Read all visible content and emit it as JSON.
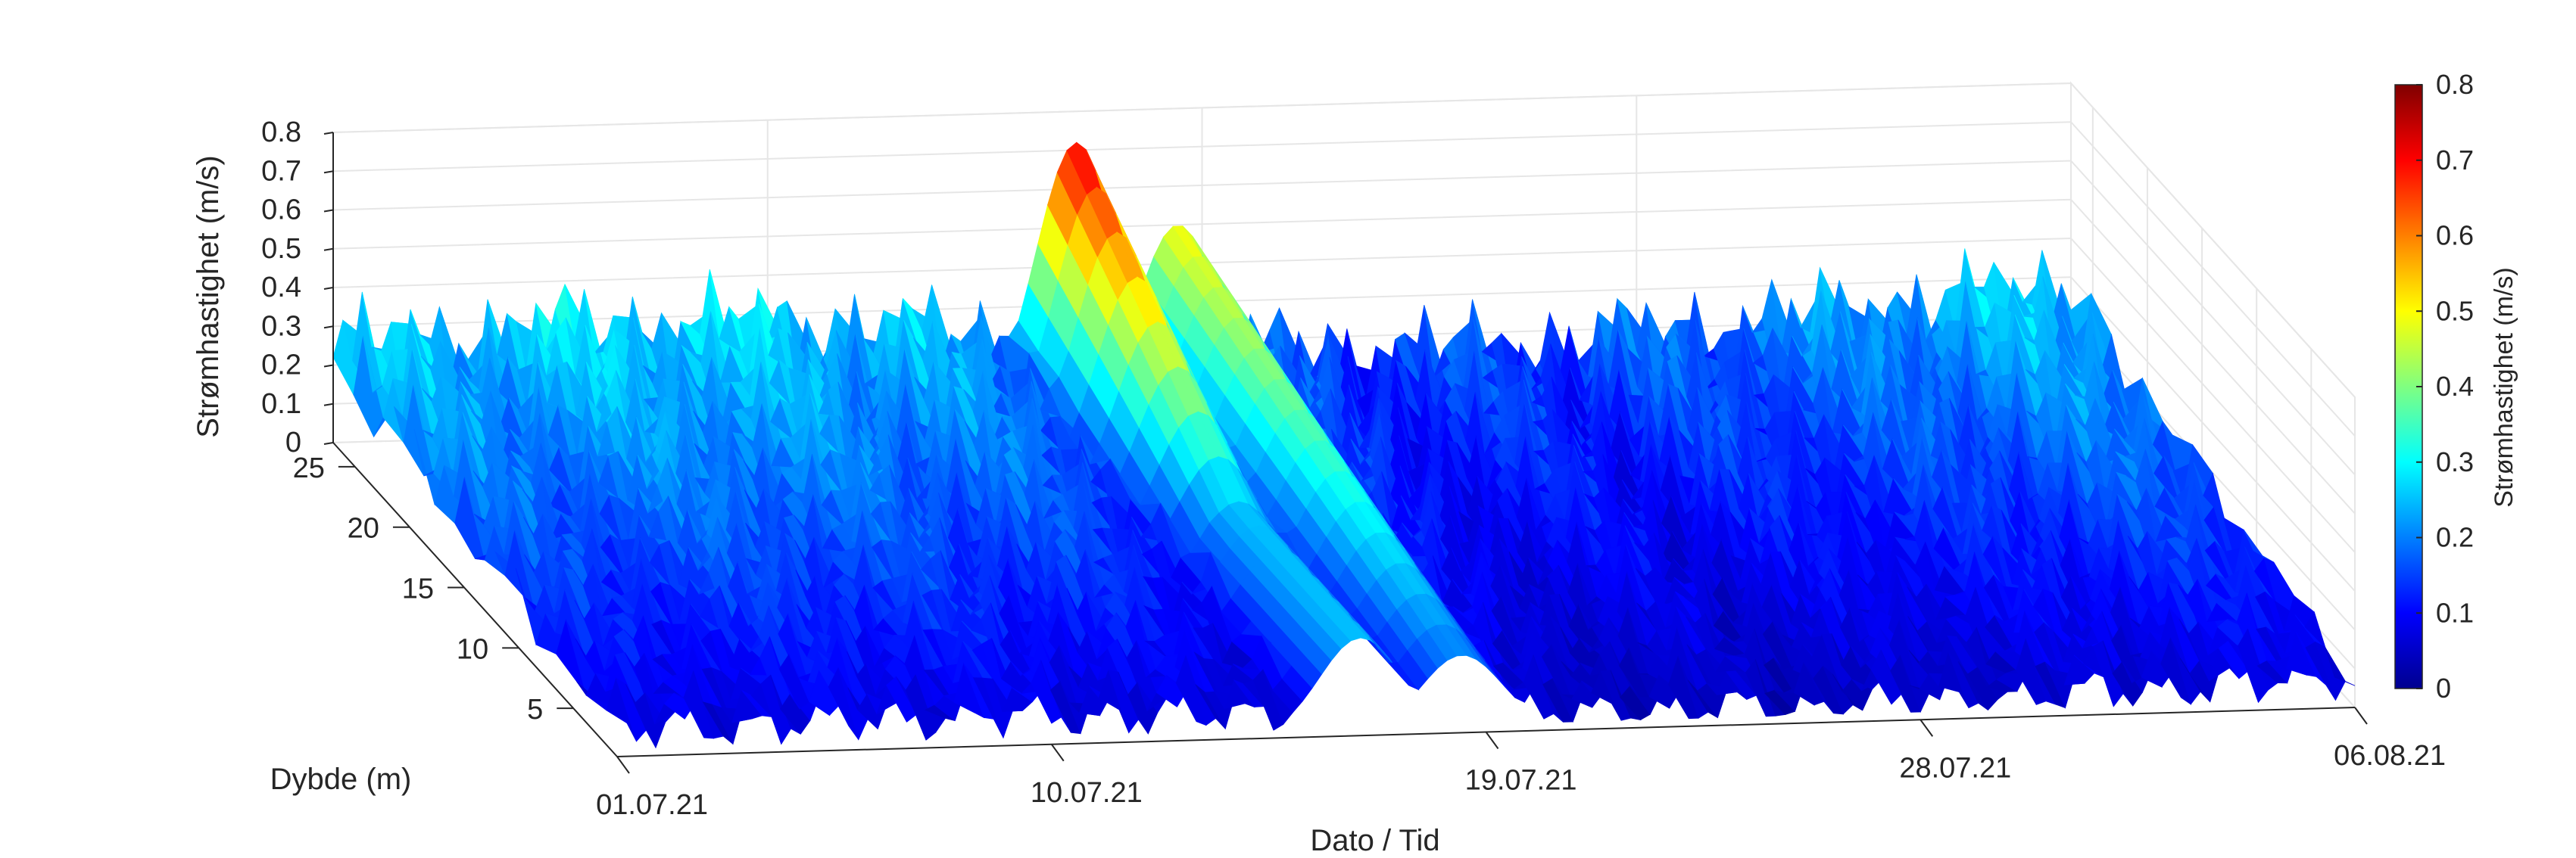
{
  "chart_data": {
    "type": "surface",
    "zlabel": "Strømhastighet (m/s)",
    "ylabel": "Dybde (m)",
    "xlabel": "Dato / Tid",
    "colorbar_label": "Strømhastighet (m/s)",
    "colormap": "jet",
    "zlim": [
      0,
      0.8
    ],
    "clim": [
      0,
      0.8
    ],
    "z_ticks": [
      "0",
      "0.1",
      "0.2",
      "0.3",
      "0.4",
      "0.5",
      "0.6",
      "0.7",
      "0.8"
    ],
    "y_ticks": [
      5,
      10,
      15,
      20,
      25
    ],
    "y_tick_labels": [
      "5",
      "10",
      "15",
      "20",
      "25"
    ],
    "x_tick_labels": [
      "01.07.21",
      "10.07.21",
      "19.07.21",
      "28.07.21",
      "06.08.21"
    ],
    "colorbar_ticks": [
      "0",
      "0.1",
      "0.2",
      "0.3",
      "0.4",
      "0.5",
      "0.6",
      "0.7",
      "0.8"
    ],
    "x_range_days": [
      0,
      36
    ],
    "ylim": [
      1,
      27
    ],
    "grid": true,
    "notes_series": {
      "baseline_speed_shallow": 0.07,
      "baseline_speed_deep": 0.25,
      "peak_event": {
        "x_day": 14.5,
        "speed": 0.72,
        "depth_top": 27,
        "depth_bottom": 12
      },
      "secondary_event": {
        "x_day": 17.5,
        "speed": 0.5
      }
    }
  }
}
